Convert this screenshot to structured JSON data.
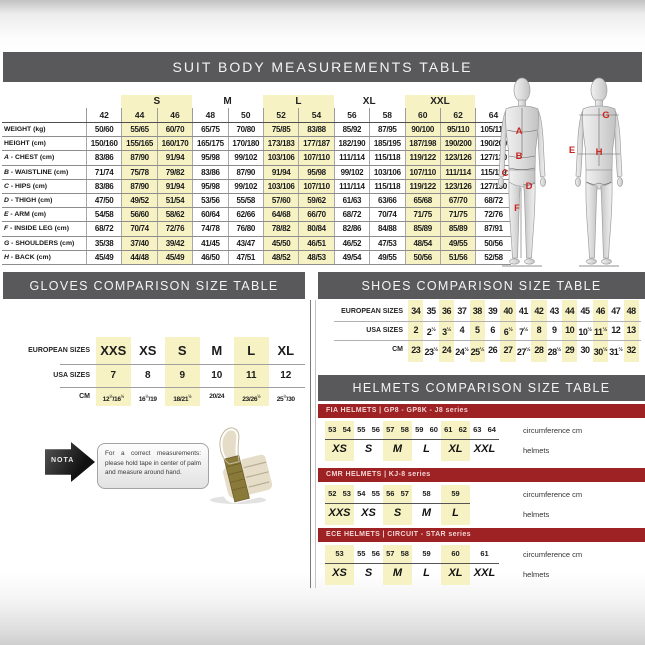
{
  "colors": {
    "header_bar": "#59595b",
    "highlight_yellow": "#f6f2c4",
    "banner_red": "#9e2123",
    "body_letter_red": "#c8251f"
  },
  "suit_table": {
    "title": "SUIT BODY MEASUREMENTS TABLE",
    "size_groups": [
      {
        "label": "",
        "cols": 1,
        "highlight": false
      },
      {
        "label": "S",
        "cols": 2,
        "highlight": true
      },
      {
        "label": "M",
        "cols": 2,
        "highlight": false
      },
      {
        "label": "L",
        "cols": 2,
        "highlight": true
      },
      {
        "label": "XL",
        "cols": 2,
        "highlight": false
      },
      {
        "label": "XXL",
        "cols": 2,
        "highlight": true
      },
      {
        "label": "",
        "cols": 1,
        "highlight": false
      }
    ],
    "sizes": [
      "42",
      "44",
      "46",
      "48",
      "50",
      "52",
      "54",
      "56",
      "58",
      "60",
      "62",
      "64"
    ],
    "highlight_columns": [
      1,
      2,
      5,
      6,
      9,
      10
    ],
    "rows": [
      {
        "prefix": "",
        "label": "WEIGHT (kg)",
        "values": [
          "50/60",
          "55/65",
          "60/70",
          "65/75",
          "70/80",
          "75/85",
          "83/88",
          "85/92",
          "87/95",
          "90/100",
          "95/110",
          "105/115"
        ]
      },
      {
        "prefix": "",
        "label": "HEIGHT (cm)",
        "values": [
          "150/160",
          "155/165",
          "160/170",
          "165/175",
          "170/180",
          "173/183",
          "177/187",
          "182/190",
          "185/195",
          "187/198",
          "190/200",
          "190/200"
        ]
      },
      {
        "prefix": "A",
        "label": "CHEST (cm)",
        "values": [
          "83/86",
          "87/90",
          "91/94",
          "95/98",
          "99/102",
          "103/106",
          "107/110",
          "111/114",
          "115/118",
          "119/122",
          "123/126",
          "127/130"
        ]
      },
      {
        "prefix": "B",
        "label": "WAISTLINE (cm)",
        "values": [
          "71/74",
          "75/78",
          "79/82",
          "83/86",
          "87/90",
          "91/94",
          "95/98",
          "99/102",
          "103/106",
          "107/110",
          "111/114",
          "115/119"
        ]
      },
      {
        "prefix": "C",
        "label": "HIPS (cm)",
        "values": [
          "83/86",
          "87/90",
          "91/94",
          "95/98",
          "99/102",
          "103/106",
          "107/110",
          "111/114",
          "115/118",
          "119/122",
          "123/126",
          "127/130"
        ]
      },
      {
        "prefix": "D",
        "label": "THIGH (cm)",
        "values": [
          "47/50",
          "49/52",
          "51/54",
          "53/56",
          "55/58",
          "57/60",
          "59/62",
          "61/63",
          "63/66",
          "65/68",
          "67/70",
          "68/72"
        ]
      },
      {
        "prefix": "E",
        "label": "ARM (cm)",
        "values": [
          "54/58",
          "56/60",
          "58/62",
          "60/64",
          "62/66",
          "64/68",
          "66/70",
          "68/72",
          "70/74",
          "71/75",
          "71/75",
          "72/76"
        ]
      },
      {
        "prefix": "F",
        "label": "INSIDE LEG (cm)",
        "values": [
          "68/72",
          "70/74",
          "72/76",
          "74/78",
          "76/80",
          "78/82",
          "80/84",
          "82/86",
          "84/88",
          "85/89",
          "85/89",
          "87/91"
        ]
      },
      {
        "prefix": "G",
        "label": "SHOULDERS (cm)",
        "values": [
          "35/38",
          "37/40",
          "39/42",
          "41/45",
          "43/47",
          "45/50",
          "46/51",
          "46/52",
          "47/53",
          "48/54",
          "49/55",
          "50/56"
        ]
      },
      {
        "prefix": "H",
        "label": "BACK (cm)",
        "values": [
          "45/49",
          "44/48",
          "45/49",
          "46/50",
          "47/51",
          "48/52",
          "48/53",
          "49/54",
          "49/55",
          "50/56",
          "51/56",
          "52/58"
        ]
      }
    ]
  },
  "body_diagram": {
    "letters": [
      "A",
      "B",
      "C",
      "D",
      "F",
      "E",
      "G",
      "H"
    ]
  },
  "gloves_table": {
    "title": "GLOVES COMPARISON SIZE TABLE",
    "row_labels": [
      "EUROPEAN SIZES",
      "USA SIZES",
      "CM"
    ],
    "columns": [
      {
        "eu": "XXS",
        "usa": "7",
        "cm": "12½/16½",
        "highlight": true
      },
      {
        "eu": "XS",
        "usa": "8",
        "cm": "16½/19",
        "highlight": false
      },
      {
        "eu": "S",
        "usa": "9",
        "cm": "18/21½",
        "highlight": true
      },
      {
        "eu": "M",
        "usa": "10",
        "cm": "20/24",
        "highlight": false
      },
      {
        "eu": "L",
        "usa": "11",
        "cm": "23/26½",
        "highlight": true
      },
      {
        "eu": "XL",
        "usa": "12",
        "cm": "25½/30",
        "highlight": false
      }
    ]
  },
  "gloves_note": {
    "tag": "NOTA",
    "text": "For a correct measurements: please hold tape in center of palm and measure around hand."
  },
  "shoes_table": {
    "title": "SHOES COMPARISON SIZE TABLE",
    "row_labels": [
      "EUROPEAN SIZES",
      "USA SIZES",
      "CM"
    ],
    "columns": [
      {
        "eu": "34",
        "usa": "2",
        "cm": "23",
        "highlight": true
      },
      {
        "eu": "35",
        "usa": "2½",
        "cm": "23½",
        "highlight": false
      },
      {
        "eu": "36",
        "usa": "3½",
        "cm": "24",
        "highlight": true
      },
      {
        "eu": "37",
        "usa": "4",
        "cm": "24½",
        "highlight": false
      },
      {
        "eu": "38",
        "usa": "5",
        "cm": "25½",
        "highlight": true
      },
      {
        "eu": "39",
        "usa": "6",
        "cm": "26",
        "highlight": false
      },
      {
        "eu": "40",
        "usa": "6½",
        "cm": "27",
        "highlight": true
      },
      {
        "eu": "41",
        "usa": "7½",
        "cm": "27½",
        "highlight": false
      },
      {
        "eu": "42",
        "usa": "8",
        "cm": "28",
        "highlight": true
      },
      {
        "eu": "43",
        "usa": "9",
        "cm": "28½",
        "highlight": false
      },
      {
        "eu": "44",
        "usa": "10",
        "cm": "29",
        "highlight": true
      },
      {
        "eu": "45",
        "usa": "10½",
        "cm": "30",
        "highlight": false
      },
      {
        "eu": "46",
        "usa": "11½",
        "cm": "30½",
        "highlight": true
      },
      {
        "eu": "47",
        "usa": "12",
        "cm": "31½",
        "highlight": false
      },
      {
        "eu": "48",
        "usa": "13",
        "cm": "32",
        "highlight": true
      }
    ]
  },
  "helmets": {
    "title": "HELMETS COMPARISON SIZE TABLE",
    "tables": [
      {
        "banner": "FIA HELMETS | GP8 - GP8K - J8 series",
        "circ_label": "circumference cm",
        "size_label": "helmets",
        "groups": [
          {
            "size": "XS",
            "values": [
              "53",
              "54"
            ],
            "highlight": true
          },
          {
            "size": "S",
            "values": [
              "55",
              "56"
            ],
            "highlight": false
          },
          {
            "size": "M",
            "values": [
              "57",
              "58"
            ],
            "highlight": true
          },
          {
            "size": "L",
            "values": [
              "59",
              "60"
            ],
            "highlight": false
          },
          {
            "size": "XL",
            "values": [
              "61",
              "62"
            ],
            "highlight": true
          },
          {
            "size": "XXL",
            "values": [
              "63",
              "64"
            ],
            "highlight": false
          }
        ]
      },
      {
        "banner": "CMR HELMETS | KJ-8 series",
        "circ_label": "circumference cm",
        "size_label": "helmets",
        "groups": [
          {
            "size": "XXS",
            "values": [
              "52",
              "53"
            ],
            "highlight": true
          },
          {
            "size": "XS",
            "values": [
              "54",
              "55"
            ],
            "highlight": false
          },
          {
            "size": "S",
            "values": [
              "56",
              "57"
            ],
            "highlight": true
          },
          {
            "size": "M",
            "values": [
              "58"
            ],
            "highlight": false
          },
          {
            "size": "L",
            "values": [
              "59"
            ],
            "highlight": true
          }
        ]
      },
      {
        "banner": "ECE HELMETS | CIRCUIT - STAR series",
        "circ_label": "circumference cm",
        "size_label": "helmets",
        "groups": [
          {
            "size": "XS",
            "values": [
              "53"
            ],
            "highlight": true
          },
          {
            "size": "S",
            "values": [
              "55",
              "56"
            ],
            "highlight": false
          },
          {
            "size": "M",
            "values": [
              "57",
              "58"
            ],
            "highlight": true
          },
          {
            "size": "L",
            "values": [
              "59"
            ],
            "highlight": false
          },
          {
            "size": "XL",
            "values": [
              "60"
            ],
            "highlight": true
          },
          {
            "size": "XXL",
            "values": [
              "61"
            ],
            "highlight": false
          }
        ]
      }
    ]
  }
}
